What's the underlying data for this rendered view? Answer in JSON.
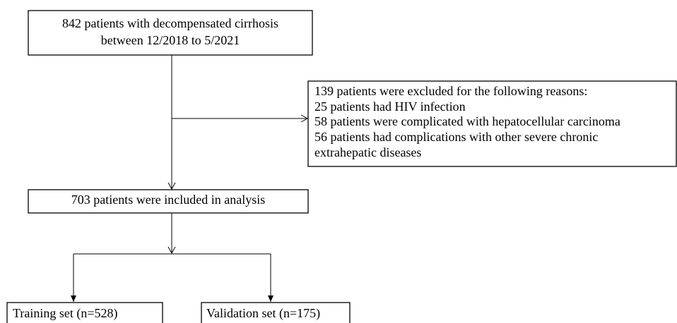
{
  "nodes": [
    {
      "lines": [
        "842 patients with decompensated cirrhosis",
        "between 12/2018 to 5/2021"
      ]
    },
    {
      "lines": [
        "139 patients were excluded for the following reasons:",
        "25 patients had HIV infection",
        "58 patients were complicated with hepatocellular carcinoma",
        "56 patients had complications with other severe chronic",
        "extrahepatic diseases"
      ]
    },
    {
      "lines": [
        "703 patients were included in analysis"
      ]
    },
    {
      "lines": [
        "Training set (n=528)"
      ]
    },
    {
      "lines": [
        "Validation set (n=175)"
      ]
    }
  ]
}
